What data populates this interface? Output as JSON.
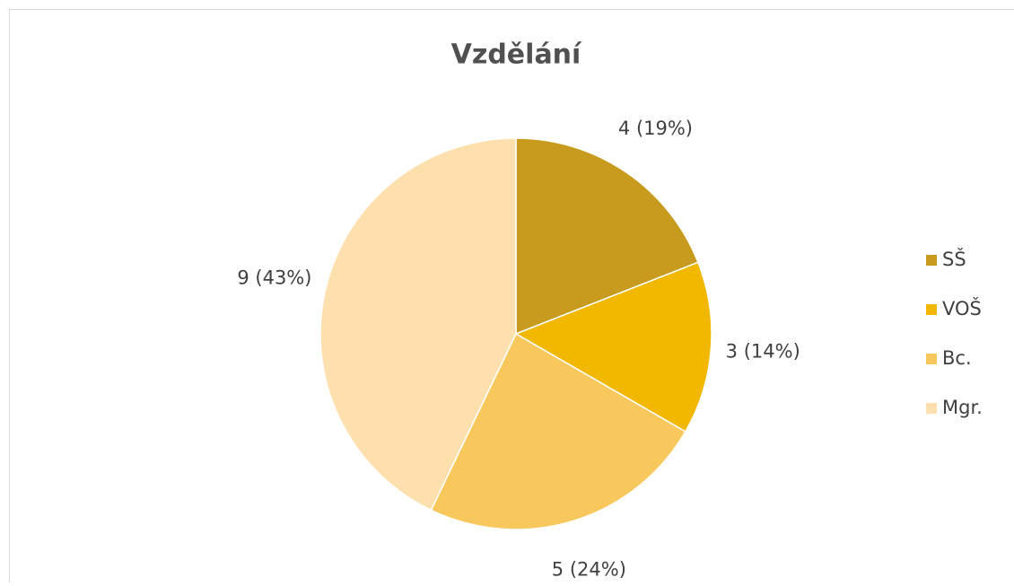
{
  "chart_data": {
    "type": "pie",
    "title": "Vzdělání",
    "categories": [
      "SŠ",
      "VOŠ",
      "Bc.",
      "Mgr."
    ],
    "values": [
      4,
      3,
      5,
      9
    ],
    "value_labels": [
      "4 (19%)",
      "3 (14%)",
      "5 (24%)",
      "9 (43%)"
    ],
    "colors": [
      "#c89b1e",
      "#f2b800",
      "#f9c85c",
      "#fde0ae"
    ],
    "legend": "right"
  }
}
